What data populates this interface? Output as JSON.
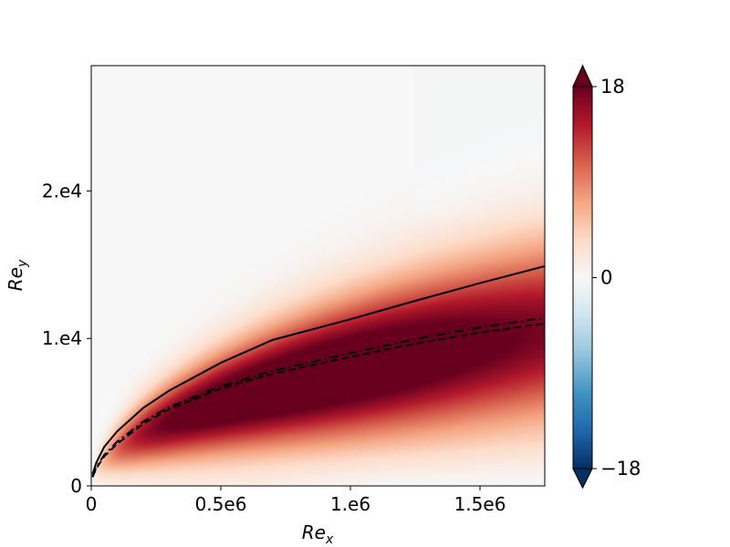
{
  "chart_data": {
    "type": "heatmap",
    "title": "",
    "xlabel": {
      "base": "Re",
      "sub": "x"
    },
    "ylabel": {
      "base": "Re",
      "sub": "y"
    },
    "xlim": [
      0,
      1750000
    ],
    "ylim": [
      0,
      28500
    ],
    "xticks": [
      {
        "value": 0,
        "label": "0"
      },
      {
        "value": 500000,
        "label": "0.5e6"
      },
      {
        "value": 1000000,
        "label": "1.e6"
      },
      {
        "value": 1500000,
        "label": "1.5e6"
      }
    ],
    "yticks": [
      {
        "value": 0,
        "label": "0"
      },
      {
        "value": 10000,
        "label": "1.e4"
      },
      {
        "value": 20000,
        "label": "2.e4"
      }
    ],
    "colorbar": {
      "min": -18,
      "max": 18,
      "colormap": "RdBu_r",
      "extend": "both",
      "ticks": [
        {
          "value": 18,
          "label": "18"
        },
        {
          "value": 0,
          "label": "0"
        },
        {
          "value": -18,
          "label": "−18"
        }
      ]
    },
    "field": {
      "peak_value": 18,
      "peak_at": {
        "x": 850000,
        "y": 7500
      },
      "band_center_coeff": 7.9,
      "band_width_coeff": 3.1,
      "negative_region": {
        "value": -1.2,
        "y_max": 3000,
        "x_min": 500000
      },
      "faint_negative_region": {
        "value": -0.3,
        "x_min": 1250000,
        "y_min": 18000
      }
    },
    "series": [
      {
        "style": "solid",
        "color": "#000000",
        "points": [
          [
            5000,
            800
          ],
          [
            20000,
            1600
          ],
          [
            50000,
            2650
          ],
          [
            100000,
            3700
          ],
          [
            200000,
            5280
          ],
          [
            300000,
            6450
          ],
          [
            500000,
            8350
          ],
          [
            700000,
            9900
          ],
          [
            1000000,
            11300
          ],
          [
            1250000,
            12550
          ],
          [
            1500000,
            13750
          ],
          [
            1750000,
            14900
          ]
        ]
      },
      {
        "style": "dashdot",
        "color": "#000000",
        "points": [
          [
            5000,
            650
          ],
          [
            20000,
            1300
          ],
          [
            50000,
            2100
          ],
          [
            100000,
            3000
          ],
          [
            200000,
            4350
          ],
          [
            300000,
            5350
          ],
          [
            500000,
            6750
          ],
          [
            700000,
            7800
          ],
          [
            1000000,
            9000
          ],
          [
            1250000,
            9950
          ],
          [
            1500000,
            10750
          ],
          [
            1750000,
            11400
          ]
        ]
      },
      {
        "style": "dashed",
        "color": "#000000",
        "points": [
          [
            5000,
            600
          ],
          [
            20000,
            1200
          ],
          [
            50000,
            2000
          ],
          [
            100000,
            2850
          ],
          [
            200000,
            4200
          ],
          [
            300000,
            5200
          ],
          [
            500000,
            6600
          ],
          [
            700000,
            7600
          ],
          [
            1000000,
            8750
          ],
          [
            1250000,
            9650
          ],
          [
            1500000,
            10400
          ],
          [
            1750000,
            11000
          ]
        ]
      }
    ]
  }
}
